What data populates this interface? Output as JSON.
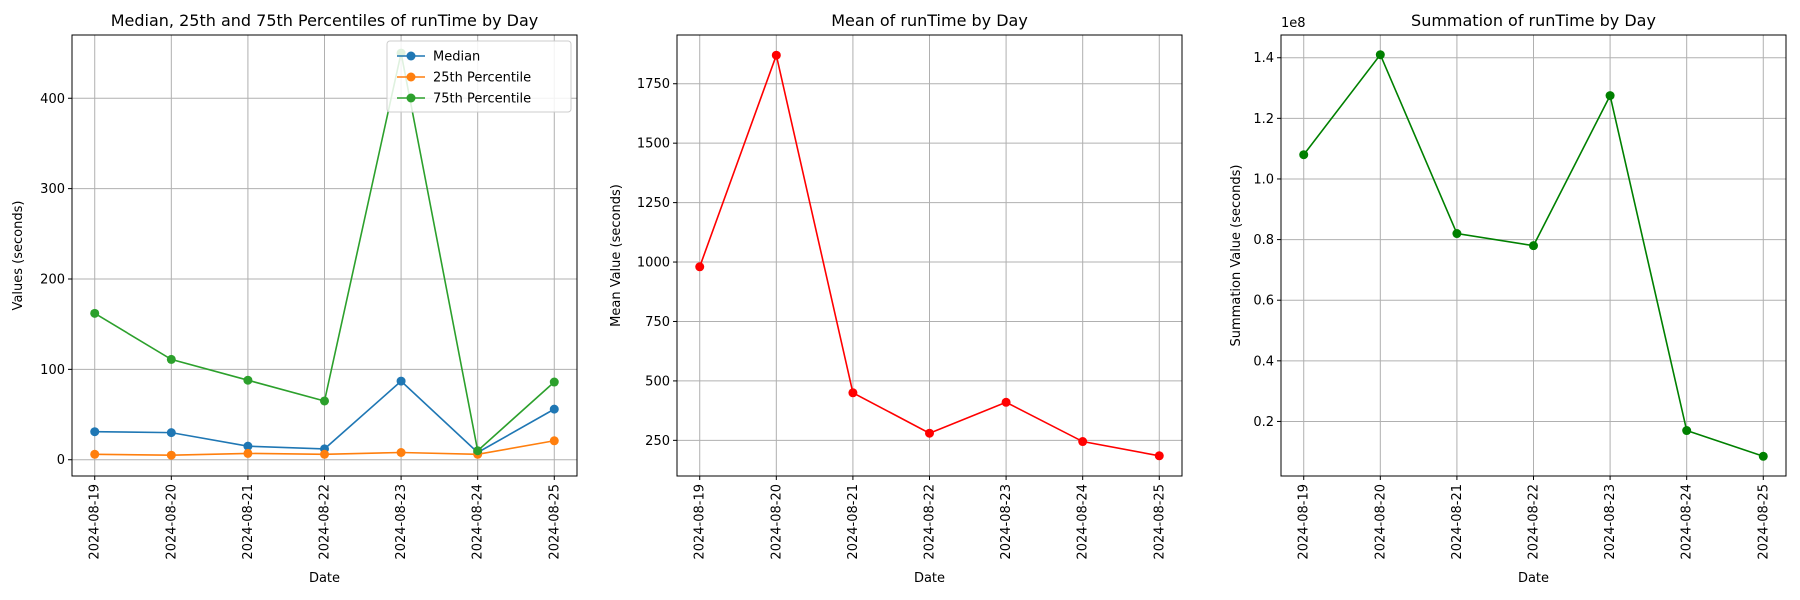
{
  "chart_data": [
    {
      "type": "line",
      "title": "Median, 25th and 75th Percentiles of runTime by Day",
      "xlabel": "Date",
      "ylabel": "Values (seconds)",
      "categories": [
        "2024-08-19",
        "2024-08-20",
        "2024-08-21",
        "2024-08-22",
        "2024-08-23",
        "2024-08-24",
        "2024-08-25"
      ],
      "ylim": [
        -18,
        470
      ],
      "yticks": [
        0,
        100,
        200,
        300,
        400
      ],
      "ytick_labels": [
        "0",
        "100",
        "200",
        "300",
        "400"
      ],
      "y_offset_label": "",
      "grid": true,
      "legend": "top-right",
      "series": [
        {
          "name": "Median",
          "color": "#1f77b4",
          "values": [
            31,
            30,
            15,
            12,
            87,
            8,
            56
          ]
        },
        {
          "name": "25th Percentile",
          "color": "#ff7f0e",
          "values": [
            6,
            5,
            7,
            6,
            8,
            6,
            21
          ]
        },
        {
          "name": "75th Percentile",
          "color": "#2ca02c",
          "values": [
            162,
            111,
            88,
            65,
            450,
            10,
            86
          ]
        }
      ]
    },
    {
      "type": "line",
      "title": "Mean of runTime by Day",
      "xlabel": "Date",
      "ylabel": "Mean Value (seconds)",
      "categories": [
        "2024-08-19",
        "2024-08-20",
        "2024-08-21",
        "2024-08-22",
        "2024-08-23",
        "2024-08-24",
        "2024-08-25"
      ],
      "ylim": [
        100,
        1955
      ],
      "yticks": [
        250,
        500,
        750,
        1000,
        1250,
        1500,
        1750
      ],
      "ytick_labels": [
        "250",
        "500",
        "750",
        "1000",
        "1250",
        "1500",
        "1750"
      ],
      "y_offset_label": "",
      "grid": true,
      "legend": "none",
      "series": [
        {
          "color": "#ff0000",
          "values": [
            980,
            1870,
            450,
            280,
            410,
            245,
            185
          ]
        }
      ]
    },
    {
      "type": "line",
      "title": "Summation of runTime by Day",
      "xlabel": "Date",
      "ylabel": "Summation Value (seconds)",
      "categories": [
        "2024-08-19",
        "2024-08-20",
        "2024-08-21",
        "2024-08-22",
        "2024-08-23",
        "2024-08-24",
        "2024-08-25"
      ],
      "ylim": [
        0.02,
        1.475
      ],
      "yticks": [
        0.2,
        0.4,
        0.6,
        0.8,
        1.0,
        1.2,
        1.4
      ],
      "ytick_labels": [
        "0.2",
        "0.4",
        "0.6",
        "0.8",
        "1.0",
        "1.2",
        "1.4"
      ],
      "y_offset_label": "1e8",
      "grid": true,
      "legend": "none",
      "series": [
        {
          "color": "#008000",
          "values": [
            1.08,
            1.41,
            0.82,
            0.78,
            1.275,
            0.17,
            0.085
          ]
        }
      ]
    }
  ]
}
